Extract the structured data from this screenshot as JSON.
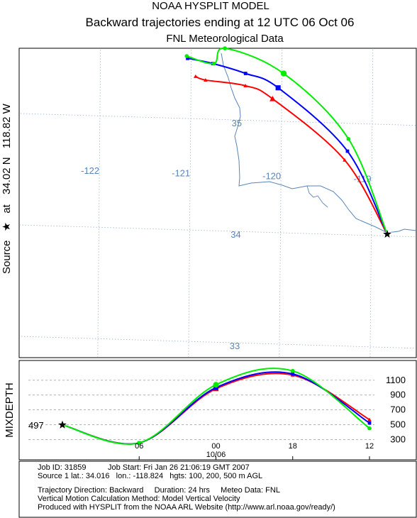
{
  "header": {
    "line1": "NOAA HYSPLIT MODEL",
    "line2": "Backward trajectories ending at 12 UTC 06 Oct 06",
    "line3": "FNL  Meteorological Data"
  },
  "side_label": {
    "prefix": "Source",
    "star": "★",
    "at": "at",
    "lat": "34.02 N",
    "lon": "118.82 W"
  },
  "mixdepth_label": "MIXDEPTH",
  "footer": {
    "line1": "Job ID: 31859          Job Start: Fri Jan 26 21:06:19 GMT 2007",
    "line2": "Source 1 lat.: 34.016   lon.: -118.824   hgts: 100, 200, 500 m AGL",
    "line3": "Trajectory Direction: Backward     Duration: 24 hrs     Meteo Data: FNL",
    "line4": "Vertical Motion Calculation Method: Model Vertical Velocity",
    "line5": "Produced with HYSPLIT from the NOAA ARL Website (http://www.arl.noaa.gov/ready/)"
  },
  "colors": {
    "red": "#ff0000",
    "blue": "#0000ff",
    "green": "#00ee00",
    "geo": "#5b83b4",
    "grid": "#9bb3d1"
  },
  "chart_data": [
    {
      "type": "line",
      "chart": "trajectory-map",
      "longitude_labels": [
        "-122",
        "-121",
        "-120",
        "-119"
      ],
      "latitude_labels": [
        "35",
        "34",
        "33"
      ],
      "source": {
        "lat": 34.016,
        "lon": -118.824
      },
      "series": [
        {
          "color": "red",
          "marker": "triangle",
          "points": [
            {
              "lon": -120.95,
              "lat": 35.38
            },
            {
              "lon": -120.84,
              "lat": 35.35
            },
            {
              "lon": -120.4,
              "lat": 35.31
            },
            {
              "lon": -120.1,
              "lat": 35.2
            },
            {
              "lon": -119.3,
              "lat": 34.67
            },
            {
              "lon": -118.824,
              "lat": 34.016
            }
          ]
        },
        {
          "color": "blue",
          "marker": "square",
          "points": [
            {
              "lon": -121.04,
              "lat": 35.54
            },
            {
              "lon": -120.76,
              "lat": 35.5
            },
            {
              "lon": -120.4,
              "lat": 35.42
            },
            {
              "lon": -120.04,
              "lat": 35.3
            },
            {
              "lon": -119.27,
              "lat": 34.75
            },
            {
              "lon": -118.824,
              "lat": 34.016
            }
          ]
        },
        {
          "color": "green",
          "marker": "circle",
          "points": [
            {
              "lon": -121.05,
              "lat": 35.56
            },
            {
              "lon": -120.75,
              "lat": 35.5
            },
            {
              "lon": -120.63,
              "lat": 35.64
            },
            {
              "lon": -119.98,
              "lat": 35.43
            },
            {
              "lon": -119.26,
              "lat": 34.86
            },
            {
              "lon": -118.824,
              "lat": 34.016
            }
          ]
        }
      ]
    },
    {
      "type": "line",
      "chart": "mixdepth",
      "ylabel": "MIXDEPTH",
      "y_ticks": [
        300,
        500,
        700,
        900,
        1100
      ],
      "ylim": [
        150,
        1300
      ],
      "x_ticks": [
        {
          "h": -18,
          "label": "06"
        },
        {
          "h": -12,
          "label": "00"
        },
        {
          "h": -6,
          "label": "18"
        },
        {
          "h": 0,
          "label": "12"
        }
      ],
      "date_label": "10/06",
      "start_value_label": "497",
      "series": [
        {
          "color": "red",
          "x": [
            -24,
            -18,
            -12,
            -6,
            0
          ],
          "values": [
            497,
            254,
            985,
            1170,
            568
          ]
        },
        {
          "color": "blue",
          "x": [
            -24,
            -18,
            -12,
            -6,
            0
          ],
          "values": [
            497,
            254,
            1000,
            1185,
            523
          ]
        },
        {
          "color": "green",
          "x": [
            -24,
            -18,
            -12,
            -6,
            0
          ],
          "values": [
            497,
            254,
            1039,
            1226,
            451
          ]
        }
      ]
    }
  ]
}
